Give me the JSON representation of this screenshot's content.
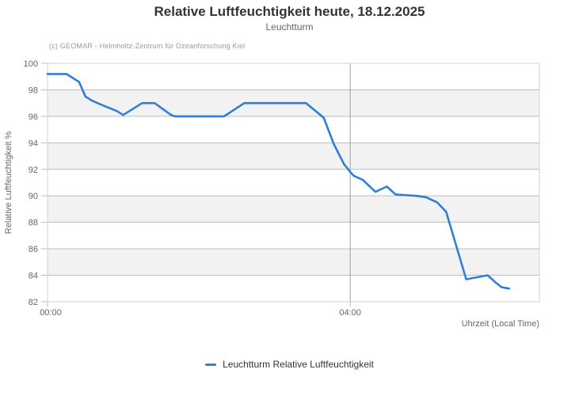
{
  "chart": {
    "title": "Relative Luftfeuchtigkeit heute, 18.12.2025",
    "subtitle": "Leuchtturm",
    "credit": "(c) GEOMAR - Helmholtz-Zentrum für Ozeanforschung Kiel",
    "legend": "Leuchtturm Relative Luftfeuchtigkeit",
    "theme": {
      "line": "#2f7ed8",
      "band": "#f2f2f2",
      "grid": "#bbbbbb",
      "vgrid": "#a0a0a0",
      "border": "#d0d0d0",
      "title_text": "#333333",
      "subtitle_text": "#666666",
      "credit_text": "#999999",
      "axis_text": "#666666"
    }
  },
  "chart_data": {
    "type": "line",
    "title": "Relative Luftfeuchtigkeit heute, 18.12.2025",
    "subtitle": "Leuchtturm",
    "xlabel": "Uhrzeit (Local Time)",
    "ylabel": "Relative Luftfeuchtigkeit %",
    "ylim": [
      82,
      100
    ],
    "ytick_step": 2,
    "yticks": [
      82,
      84,
      86,
      88,
      90,
      92,
      94,
      96,
      98,
      100
    ],
    "xlim_minutes": [
      0,
      390
    ],
    "xticks": [
      "00:00",
      "04:00"
    ],
    "grid": "horizontal gridlines every 2%, alternating gray bands (96-98, 92-94, 88-90, 84-86), vertical gridline at 04:00",
    "legend_position": "bottom-center",
    "series": [
      {
        "name": "Leuchtturm Relative Luftfeuchtigkeit",
        "color": "#2f7ed8",
        "points": [
          [
            "00:00",
            99.2
          ],
          [
            "00:15",
            99.2
          ],
          [
            "00:25",
            98.6
          ],
          [
            "00:30",
            97.5
          ],
          [
            "00:35",
            97.2
          ],
          [
            "00:42",
            96.9
          ],
          [
            "00:50",
            96.6
          ],
          [
            "00:55",
            96.4
          ],
          [
            "01:00",
            96.1
          ],
          [
            "01:15",
            97.0
          ],
          [
            "01:25",
            97.0
          ],
          [
            "01:38",
            96.1
          ],
          [
            "01:41",
            96.0
          ],
          [
            "02:20",
            96.0
          ],
          [
            "02:36",
            97.0
          ],
          [
            "03:25",
            97.0
          ],
          [
            "03:39",
            95.9
          ],
          [
            "03:47",
            93.9
          ],
          [
            "03:55",
            92.4
          ],
          [
            "04:00",
            91.8
          ],
          [
            "04:03",
            91.5
          ],
          [
            "04:10",
            91.2
          ],
          [
            "04:20",
            90.3
          ],
          [
            "04:29",
            90.7
          ],
          [
            "04:36",
            90.1
          ],
          [
            "04:52",
            90.0
          ],
          [
            "05:00",
            89.9
          ],
          [
            "05:09",
            89.5
          ],
          [
            "05:16",
            88.8
          ],
          [
            "05:32",
            83.7
          ],
          [
            "05:49",
            84.0
          ],
          [
            "05:56",
            83.4
          ],
          [
            "06:00",
            83.1
          ],
          [
            "06:06",
            83.0
          ]
        ]
      }
    ]
  }
}
